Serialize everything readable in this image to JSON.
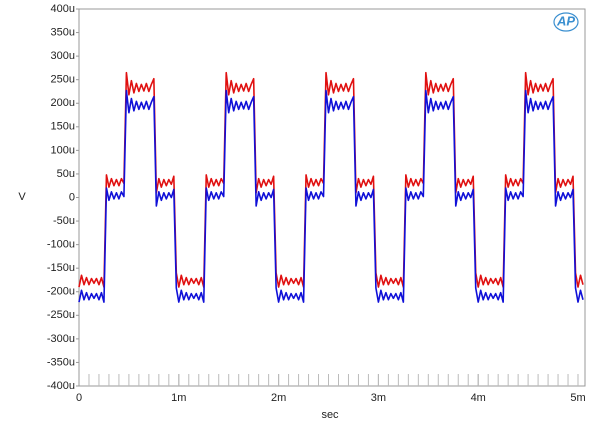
{
  "chart_data": {
    "type": "line",
    "xlabel": "sec",
    "ylabel": "V",
    "xlim": [
      0,
      0.00507
    ],
    "ylim": [
      -0.0004,
      0.0004
    ],
    "xticks": [
      0,
      {
        "value": 0.001,
        "label": "1m"
      },
      {
        "value": 0.002,
        "label": "2m"
      },
      {
        "value": 0.003,
        "label": "3m"
      },
      {
        "value": 0.004,
        "label": "4m"
      },
      {
        "value": 0.005,
        "label": "5m"
      }
    ],
    "yticks": [
      {
        "value": 0.0004,
        "label": "400u"
      },
      {
        "value": 0.00035,
        "label": "350u"
      },
      {
        "value": 0.0003,
        "label": "300u"
      },
      {
        "value": 0.00025,
        "label": "250u"
      },
      {
        "value": 0.0002,
        "label": "200u"
      },
      {
        "value": 0.00015,
        "label": "150u"
      },
      {
        "value": 0.0001,
        "label": "100u"
      },
      {
        "value": 5e-05,
        "label": "50u"
      },
      0,
      {
        "value": -5e-05,
        "label": "-50u"
      },
      {
        "value": -0.0001,
        "label": "-100u"
      },
      {
        "value": -0.00015,
        "label": "-150u"
      },
      {
        "value": -0.0002,
        "label": "-200u"
      },
      {
        "value": -0.00025,
        "label": "-250u"
      },
      {
        "value": -0.0003,
        "label": "-300u"
      },
      {
        "value": -0.00035,
        "label": "-350u"
      },
      {
        "value": -0.0004,
        "label": "-400u"
      }
    ],
    "x": [
      0,
      2.5e-05,
      5e-05,
      7.5e-05,
      0.0001,
      0.000125,
      0.00015,
      0.000175,
      0.0002,
      0.000225,
      0.00025,
      0.000275,
      0.0003,
      0.000325,
      0.00035,
      0.000375,
      0.0004,
      0.000425,
      0.00045,
      0.000475,
      0.0005,
      0.000525,
      0.00055,
      0.000575,
      0.0006,
      0.000625,
      0.00065,
      0.000675,
      0.0007,
      0.000725,
      0.00075,
      0.000775,
      0.0008,
      0.000825,
      0.00085,
      0.000875,
      0.0009,
      0.000925,
      0.00095,
      0.000975,
      0.001,
      0.001025,
      0.00105,
      0.001075,
      0.0011,
      0.001125,
      0.00115,
      0.001175,
      0.0012,
      0.001225,
      0.00125,
      0.001275,
      0.0013,
      0.001325,
      0.00135,
      0.001375,
      0.0014,
      0.001425,
      0.00145,
      0.001475,
      0.0015,
      0.001525,
      0.00155,
      0.001575,
      0.0016,
      0.001625,
      0.00165,
      0.001675,
      0.0017,
      0.001725,
      0.00175,
      0.001775,
      0.0018,
      0.001825,
      0.00185,
      0.001875,
      0.0019,
      0.001925,
      0.00195,
      0.001975,
      0.002,
      0.002025,
      0.00205,
      0.002075,
      0.0021,
      0.002125,
      0.00215,
      0.002175,
      0.0022,
      0.002225,
      0.00225,
      0.002275,
      0.0023,
      0.002325,
      0.00235,
      0.002375,
      0.0024,
      0.002425,
      0.00245,
      0.002475,
      0.0025,
      0.002525,
      0.00255,
      0.002575,
      0.0026,
      0.002625,
      0.00265,
      0.002675,
      0.0027,
      0.002725,
      0.00275,
      0.002775,
      0.0028,
      0.002825,
      0.00285,
      0.002875,
      0.0029,
      0.002925,
      0.00295,
      0.002975,
      0.003,
      0.003025,
      0.00305,
      0.003075,
      0.0031,
      0.003125,
      0.00315,
      0.003175,
      0.0032,
      0.003225,
      0.00325,
      0.003275,
      0.0033,
      0.003325,
      0.00335,
      0.003375,
      0.0034,
      0.003425,
      0.00345,
      0.003475,
      0.0035,
      0.003525,
      0.00355,
      0.003575,
      0.0036,
      0.003625,
      0.00365,
      0.003675,
      0.0037,
      0.003725,
      0.00375,
      0.003775,
      0.0038,
      0.003825,
      0.00385,
      0.003875,
      0.0039,
      0.003925,
      0.00395,
      0.003975,
      0.004,
      0.004025,
      0.00405,
      0.004075,
      0.0041,
      0.004125,
      0.00415,
      0.004175,
      0.0042,
      0.004225,
      0.00425,
      0.004275,
      0.0043,
      0.004325,
      0.00435,
      0.004375,
      0.0044,
      0.004425,
      0.00445,
      0.004475,
      0.0045,
      0.004525,
      0.00455,
      0.004575,
      0.0046,
      0.004625,
      0.00465,
      0.004675,
      0.0047,
      0.004725,
      0.00475,
      0.004775,
      0.0048,
      0.004825,
      0.00485,
      0.004875,
      0.0049,
      0.004925,
      0.00495,
      0.004975,
      0.005,
      0.005025,
      0.00505
    ],
    "series": [
      {
        "color": "#e01010",
        "values": [
          -0.00019,
          -0.000165,
          -0.000185,
          -0.00017,
          -0.000185,
          -0.000172,
          -0.000182,
          -0.000172,
          -0.000185,
          -0.00017,
          -0.00019,
          4.8e-05,
          2.2e-05,
          4e-05,
          2.5e-05,
          3.8e-05,
          2.5e-05,
          4e-05,
          3e-05,
          0.000265,
          0.000218,
          0.000248,
          0.000222,
          0.000242,
          0.000225,
          0.00024,
          0.000226,
          0.000242,
          0.000225,
          0.00024,
          0.000252,
          1e-05,
          4e-05,
          2.2e-05,
          3.8e-05,
          2.5e-05,
          3.8e-05,
          2.8e-05,
          4.5e-05,
          -0.00016,
          -0.00019,
          -0.000165,
          -0.000185,
          -0.00017,
          -0.000185,
          -0.000172,
          -0.000182,
          -0.000172,
          -0.000185,
          -0.00017,
          -0.00019,
          4.8e-05,
          2.2e-05,
          4e-05,
          2.5e-05,
          3.8e-05,
          2.5e-05,
          4e-05,
          3e-05,
          0.000265,
          0.000218,
          0.000248,
          0.000222,
          0.000242,
          0.000225,
          0.00024,
          0.000226,
          0.000242,
          0.000225,
          0.00024,
          0.000252,
          1e-05,
          4e-05,
          2.2e-05,
          3.8e-05,
          2.5e-05,
          3.8e-05,
          2.8e-05,
          4.5e-05,
          -0.00016,
          -0.00019,
          -0.000165,
          -0.000185,
          -0.00017,
          -0.000185,
          -0.000172,
          -0.000182,
          -0.000172,
          -0.000185,
          -0.00017,
          -0.00019,
          4.8e-05,
          2.2e-05,
          4e-05,
          2.5e-05,
          3.8e-05,
          2.5e-05,
          4e-05,
          3e-05,
          0.000265,
          0.000218,
          0.000248,
          0.000222,
          0.000242,
          0.000225,
          0.00024,
          0.000226,
          0.000242,
          0.000225,
          0.00024,
          0.000252,
          1e-05,
          4e-05,
          2.2e-05,
          3.8e-05,
          2.5e-05,
          3.8e-05,
          2.8e-05,
          4.5e-05,
          -0.00016,
          -0.00019,
          -0.000165,
          -0.000185,
          -0.00017,
          -0.000185,
          -0.000172,
          -0.000182,
          -0.000172,
          -0.000185,
          -0.00017,
          -0.00019,
          4.8e-05,
          2.2e-05,
          4e-05,
          2.5e-05,
          3.8e-05,
          2.5e-05,
          4e-05,
          3e-05,
          0.000265,
          0.000218,
          0.000248,
          0.000222,
          0.000242,
          0.000225,
          0.00024,
          0.000226,
          0.000242,
          0.000225,
          0.00024,
          0.000252,
          1e-05,
          4e-05,
          2.2e-05,
          3.8e-05,
          2.5e-05,
          3.8e-05,
          2.8e-05,
          4.5e-05,
          -0.00016,
          -0.00019,
          -0.000165,
          -0.000185,
          -0.00017,
          -0.000185,
          -0.000172,
          -0.000182,
          -0.000172,
          -0.000185,
          -0.00017,
          -0.00019,
          4.8e-05,
          2.2e-05,
          4e-05,
          2.5e-05,
          3.8e-05,
          2.5e-05,
          4e-05,
          3e-05,
          0.000265,
          0.000218,
          0.000248,
          0.000222,
          0.000242,
          0.000225,
          0.00024,
          0.000226,
          0.000242,
          0.000225,
          0.00024,
          0.000252,
          1e-05,
          4e-05,
          2.2e-05,
          3.8e-05,
          2.5e-05,
          3.8e-05,
          2.8e-05,
          4.5e-05,
          -0.00016,
          -0.00019,
          -0.000165,
          -0.000185
        ]
      },
      {
        "color": "#1010d8",
        "values": [
          -0.000222,
          -0.000197,
          -0.000217,
          -0.000202,
          -0.000217,
          -0.000204,
          -0.000214,
          -0.000204,
          -0.000217,
          -0.000202,
          -0.000222,
          2e-05,
          -6e-06,
          1.2e-05,
          -3e-06,
          1e-05,
          -3e-06,
          1.2e-05,
          2e-06,
          0.000227,
          0.00018,
          0.00021,
          0.000184,
          0.000204,
          0.000187,
          0.000202,
          0.000188,
          0.000204,
          0.000187,
          0.000202,
          0.000214,
          -1.8e-05,
          1.2e-05,
          -6e-06,
          1e-05,
          -3e-06,
          1e-05,
          0,
          1.7e-05,
          -0.000192,
          -0.000222,
          -0.000197,
          -0.000217,
          -0.000202,
          -0.000217,
          -0.000204,
          -0.000214,
          -0.000204,
          -0.000217,
          -0.000202,
          -0.000222,
          2e-05,
          -6e-06,
          1.2e-05,
          -3e-06,
          1e-05,
          -3e-06,
          1.2e-05,
          2e-06,
          0.000227,
          0.00018,
          0.00021,
          0.000184,
          0.000204,
          0.000187,
          0.000202,
          0.000188,
          0.000204,
          0.000187,
          0.000202,
          0.000214,
          -1.8e-05,
          1.2e-05,
          -6e-06,
          1e-05,
          -3e-06,
          1e-05,
          0,
          1.7e-05,
          -0.000192,
          -0.000222,
          -0.000197,
          -0.000217,
          -0.000202,
          -0.000217,
          -0.000204,
          -0.000214,
          -0.000204,
          -0.000217,
          -0.000202,
          -0.000222,
          2e-05,
          -6e-06,
          1.2e-05,
          -3e-06,
          1e-05,
          -3e-06,
          1.2e-05,
          2e-06,
          0.000227,
          0.00018,
          0.00021,
          0.000184,
          0.000204,
          0.000187,
          0.000202,
          0.000188,
          0.000204,
          0.000187,
          0.000202,
          0.000214,
          -1.8e-05,
          1.2e-05,
          -6e-06,
          1e-05,
          -3e-06,
          1e-05,
          0,
          1.7e-05,
          -0.000192,
          -0.000222,
          -0.000197,
          -0.000217,
          -0.000202,
          -0.000217,
          -0.000204,
          -0.000214,
          -0.000204,
          -0.000217,
          -0.000202,
          -0.000222,
          2e-05,
          -6e-06,
          1.2e-05,
          -3e-06,
          1e-05,
          -3e-06,
          1.2e-05,
          2e-06,
          0.000227,
          0.00018,
          0.00021,
          0.000184,
          0.000204,
          0.000187,
          0.000202,
          0.000188,
          0.000204,
          0.000187,
          0.000202,
          0.000214,
          -1.8e-05,
          1.2e-05,
          -6e-06,
          1e-05,
          -3e-06,
          1e-05,
          0,
          1.7e-05,
          -0.000192,
          -0.000222,
          -0.000197,
          -0.000217,
          -0.000202,
          -0.000217,
          -0.000204,
          -0.000214,
          -0.000204,
          -0.000217,
          -0.000202,
          -0.000222,
          2e-05,
          -6e-06,
          1.2e-05,
          -3e-06,
          1e-05,
          -3e-06,
          1.2e-05,
          2e-06,
          0.000227,
          0.00018,
          0.00021,
          0.000184,
          0.000204,
          0.000187,
          0.000202,
          0.000188,
          0.000204,
          0.000187,
          0.000202,
          0.000214,
          -1.8e-05,
          1.2e-05,
          -6e-06,
          1e-05,
          -3e-06,
          1e-05,
          0,
          1.7e-05,
          -0.000192,
          -0.000222,
          -0.000197,
          -0.000217
        ]
      }
    ]
  }
}
